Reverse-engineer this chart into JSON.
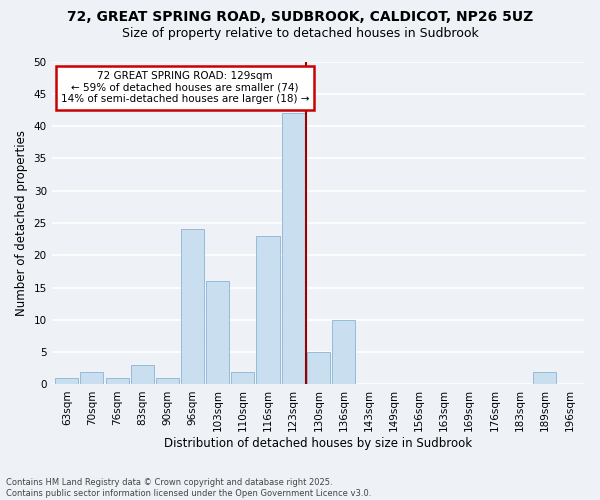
{
  "title_line1": "72, GREAT SPRING ROAD, SUDBROOK, CALDICOT, NP26 5UZ",
  "title_line2": "Size of property relative to detached houses in Sudbrook",
  "xlabel": "Distribution of detached houses by size in Sudbrook",
  "ylabel": "Number of detached properties",
  "footnote": "Contains HM Land Registry data © Crown copyright and database right 2025.\nContains public sector information licensed under the Open Government Licence v3.0.",
  "categories": [
    "63sqm",
    "70sqm",
    "76sqm",
    "83sqm",
    "90sqm",
    "96sqm",
    "103sqm",
    "110sqm",
    "116sqm",
    "123sqm",
    "130sqm",
    "136sqm",
    "143sqm",
    "149sqm",
    "156sqm",
    "163sqm",
    "169sqm",
    "176sqm",
    "183sqm",
    "189sqm",
    "196sqm"
  ],
  "bar_values": [
    1,
    2,
    1,
    3,
    1,
    24,
    16,
    2,
    23,
    42,
    5,
    10,
    0,
    0,
    0,
    0,
    0,
    0,
    0,
    2,
    0
  ],
  "bar_color": "#c9dff0",
  "bar_edge_color": "#8ab4d4",
  "property_label": "72 GREAT SPRING ROAD: 129sqm",
  "stat_line1": "← 59% of detached houses are smaller (74)",
  "stat_line2": "14% of semi-detached houses are larger (18) →",
  "vline_color": "#990000",
  "vline_position": 9.5,
  "annotation_box_color": "#cc0000",
  "ylim": [
    0,
    50
  ],
  "yticks": [
    0,
    5,
    10,
    15,
    20,
    25,
    30,
    35,
    40,
    45,
    50
  ],
  "background_color": "#eef2f7",
  "grid_color": "#ffffff",
  "title_fontsize": 10,
  "subtitle_fontsize": 9,
  "axis_label_fontsize": 8.5,
  "tick_fontsize": 7.5,
  "annotation_fontsize": 7.5
}
